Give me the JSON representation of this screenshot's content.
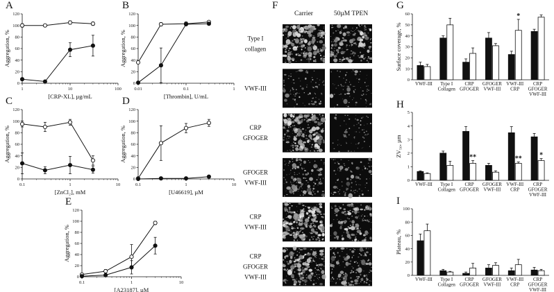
{
  "chart_data": [
    {
      "panel": "A",
      "type": "line",
      "xscale": "log",
      "xlim": [
        1,
        100
      ],
      "ylim": [
        0,
        120
      ],
      "xlabel": "[CRP-XL], µg/mL",
      "ylabel": "Aggregation, %",
      "xticks": [
        1,
        10,
        100
      ],
      "yticks": [
        0,
        20,
        40,
        60,
        80,
        100,
        120
      ],
      "series": [
        {
          "style": "open",
          "x": [
            1,
            3,
            10,
            30
          ],
          "y": [
            100,
            100,
            105,
            103
          ],
          "err": [
            3,
            2,
            3,
            3
          ]
        },
        {
          "style": "filled",
          "x": [
            1,
            3,
            10,
            30
          ],
          "y": [
            7,
            3,
            58,
            65
          ],
          "err": [
            2,
            1,
            12,
            18
          ]
        }
      ]
    },
    {
      "panel": "B",
      "type": "line",
      "xscale": "log",
      "xlim": [
        0.01,
        1
      ],
      "ylim": [
        0,
        120
      ],
      "xlabel": "[Thrombin], U/mL",
      "ylabel": "Aggregation, %",
      "xticks": [
        0.01,
        0.1,
        1
      ],
      "yticks": [
        0,
        20,
        40,
        60,
        80,
        100,
        120
      ],
      "series": [
        {
          "style": "open",
          "x": [
            0.01,
            0.03,
            0.1,
            0.3
          ],
          "y": [
            36,
            102,
            103,
            106
          ],
          "err": [
            2,
            3,
            3,
            2
          ]
        },
        {
          "style": "filled",
          "x": [
            0.01,
            0.03,
            0.1,
            0.3
          ],
          "y": [
            1,
            31,
            102,
            103
          ],
          "err": [
            1,
            30,
            2,
            2
          ]
        }
      ]
    },
    {
      "panel": "C",
      "type": "line",
      "xscale": "log",
      "xlim": [
        0.1,
        10
      ],
      "ylim": [
        0,
        120
      ],
      "xlabel": "[ZnCl₂], mM",
      "ylabel": "Aggregation, %",
      "xticks": [
        0.1,
        1,
        10
      ],
      "yticks": [
        0,
        20,
        40,
        60,
        80,
        100,
        120
      ],
      "series": [
        {
          "style": "open",
          "x": [
            0.1,
            0.3,
            1,
            3
          ],
          "y": [
            95,
            90,
            98,
            32
          ],
          "err": [
            5,
            8,
            5,
            8
          ]
        },
        {
          "style": "filled",
          "x": [
            0.1,
            0.3,
            1,
            3
          ],
          "y": [
            27,
            15,
            24,
            16
          ],
          "err": [
            18,
            6,
            15,
            6
          ]
        }
      ]
    },
    {
      "panel": "D",
      "type": "line",
      "xscale": "log",
      "xlim": [
        0.1,
        10
      ],
      "ylim": [
        0,
        120
      ],
      "xlabel": "[U46619], µM",
      "ylabel": "Aggregation, %",
      "xticks": [
        0.1,
        1,
        10
      ],
      "yticks": [
        0,
        20,
        40,
        60,
        80,
        100,
        120
      ],
      "series": [
        {
          "style": "open",
          "x": [
            0.1,
            0.3,
            1,
            3
          ],
          "y": [
            1,
            62,
            88,
            97
          ],
          "err": [
            1,
            30,
            8,
            6
          ]
        },
        {
          "style": "filled",
          "x": [
            0.1,
            0.3,
            1,
            3
          ],
          "y": [
            0,
            1,
            1,
            4
          ],
          "err": [
            0.5,
            1,
            1,
            1.5
          ]
        }
      ]
    },
    {
      "panel": "E",
      "type": "line",
      "xscale": "log",
      "xlim": [
        0.1,
        10
      ],
      "ylim": [
        0,
        120
      ],
      "xlabel": "[A23187], µM",
      "ylabel": "Aggregation, %",
      "xticks": [
        0.1,
        1,
        10
      ],
      "yticks": [
        0,
        20,
        40,
        60,
        80,
        100,
        120
      ],
      "series": [
        {
          "style": "open",
          "x": [
            0.1,
            0.3,
            1,
            3
          ],
          "y": [
            4,
            10,
            36,
            97
          ],
          "err": [
            2,
            3,
            22,
            3
          ]
        },
        {
          "style": "filled",
          "x": [
            0.1,
            0.3,
            1,
            3
          ],
          "y": [
            1,
            3,
            17,
            56
          ],
          "err": [
            1,
            2,
            12,
            15
          ]
        }
      ]
    },
    {
      "panel": "G",
      "type": "bar",
      "ylim": [
        0,
        60
      ],
      "ylabel": "Surface coverage, %",
      "yticks": [
        0,
        10,
        20,
        30,
        40,
        50,
        60
      ],
      "categories": [
        "VWF-III",
        "Type I\nCollagen",
        "CRP\nGFOGER",
        "GFOGER\nVWF-III",
        "VWF-III\nCRP",
        "CRP\nGFOGER\nVWF-III"
      ],
      "series": [
        {
          "style": "filled",
          "values": [
            13,
            38,
            16,
            38,
            23,
            44
          ],
          "err": [
            3,
            2,
            3,
            5,
            3,
            2
          ]
        },
        {
          "style": "open",
          "values": [
            12,
            50,
            24,
            31,
            45,
            57
          ],
          "err": [
            2,
            6,
            5,
            2,
            10,
            2
          ]
        }
      ],
      "significance": [
        {
          "category_index": 4,
          "label": "*"
        }
      ]
    },
    {
      "panel": "H",
      "type": "bar",
      "ylim": [
        0,
        5
      ],
      "ylabel": "ZV₅₀, µm",
      "yticks": [
        0,
        1,
        2,
        3,
        4,
        5
      ],
      "categories": [
        "VWF-III",
        "Type I\nCollagen",
        "CRP\nGFOGER",
        "GFOGER\nVWF-III",
        "VWF-III\nCRP",
        "CRP\nGFOGER\nVWF-III"
      ],
      "series": [
        {
          "style": "filled",
          "values": [
            0.65,
            2.0,
            3.6,
            1.1,
            3.5,
            3.2
          ],
          "err": [
            0.05,
            0.15,
            0.35,
            0.15,
            0.45,
            0.25
          ]
        },
        {
          "style": "open",
          "values": [
            0.5,
            1.1,
            1.25,
            0.6,
            1.25,
            1.45
          ],
          "err": [
            0.05,
            0.3,
            0.2,
            0.1,
            0.1,
            0.15
          ]
        }
      ],
      "significance": [
        {
          "category_index": 2,
          "label": "**"
        },
        {
          "category_index": 4,
          "label": "**"
        },
        {
          "category_index": 5,
          "label": "*"
        }
      ]
    },
    {
      "panel": "I",
      "type": "bar",
      "ylim": [
        0,
        100
      ],
      "ylabel": "Plateau, %",
      "yticks": [
        0,
        20,
        40,
        60,
        80,
        100
      ],
      "categories": [
        "VWF-III",
        "Type I\nCollagen",
        "CRP\nGFOGER",
        "GFOGER\nVWF-III",
        "VWF-III\nCRP",
        "CRP\nGFOGER\nVWF-III"
      ],
      "series": [
        {
          "style": "filled",
          "values": [
            52,
            7,
            3,
            11,
            7,
            8
          ],
          "err": [
            10,
            2,
            2,
            5,
            4,
            4
          ]
        },
        {
          "style": "open",
          "values": [
            67,
            5,
            11,
            15,
            16,
            7
          ],
          "err": [
            10,
            1,
            7,
            4,
            8,
            2
          ]
        }
      ]
    }
  ],
  "micrographs": {
    "letter": "F",
    "column_headers": [
      "Carrier",
      "50µM TPEN"
    ],
    "rows": [
      "Type I\ncollagen",
      "VWF-III",
      "CRP\nGFOGER",
      "GFOGER\nVWF-III",
      "CRP\nVWF-III",
      "CRP\nGFOGER\nVWF-III"
    ],
    "texture_density": [
      [
        0.85,
        0.7
      ],
      [
        0.25,
        0.2
      ],
      [
        0.9,
        0.15
      ],
      [
        0.5,
        0.3
      ],
      [
        0.95,
        0.6
      ],
      [
        0.8,
        0.55
      ]
    ]
  }
}
